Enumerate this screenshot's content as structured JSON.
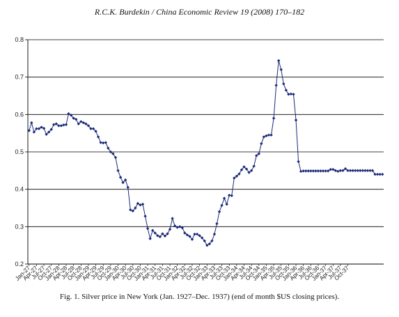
{
  "header": {
    "running_head": "R.C.K. Burdekin / China Economic Review 19 (2008) 170–182"
  },
  "figure": {
    "caption": "Fig. 1. Silver price in New York (Jan. 1927–Dec. 1937) (end of month $US closing prices)."
  },
  "colors": {
    "series": "#1b2a78",
    "grid": "#000000"
  },
  "chart_data": {
    "type": "line",
    "ylim": [
      0.2,
      0.8
    ],
    "yticks": [
      "0.2",
      "0.3",
      "0.4",
      "0.5",
      "0.6",
      "0.7",
      "0.8"
    ],
    "grid": "horizontal",
    "xtick_labels": [
      "Jan-27",
      "Apr-27",
      "Jul-27",
      "Oct-27",
      "Jan-28",
      "Apr-28",
      "Jul-28",
      "Oct-28",
      "Jan-29",
      "Apr-29",
      "Jul-29",
      "Oct-29",
      "Jan-30",
      "Apr-30",
      "Jul-30",
      "Oct-30",
      "Jan-31",
      "Apr-31",
      "Jul-31",
      "Oct-31",
      "Jan-32",
      "Apr-32",
      "Jul-32",
      "Oct-32",
      "Jan-33",
      "Apr-33",
      "Jul-33",
      "Oct-33",
      "Jan-34",
      "Apr-34",
      "Jul-34",
      "Oct-34",
      "Jan-35",
      "Apr-35",
      "Jul-35",
      "Oct-35",
      "Jan-36",
      "Apr-36",
      "Jul-36",
      "Oct-36",
      "Jan-37",
      "Apr-37",
      "Jul-37",
      "Oct-37"
    ],
    "x_start": "Jan-1927",
    "x_end": "Dec-1937",
    "values": [
      0.557,
      0.578,
      0.553,
      0.562,
      0.562,
      0.566,
      0.563,
      0.547,
      0.553,
      0.56,
      0.573,
      0.575,
      0.57,
      0.57,
      0.572,
      0.573,
      0.602,
      0.598,
      0.59,
      0.587,
      0.575,
      0.581,
      0.578,
      0.575,
      0.57,
      0.562,
      0.562,
      0.555,
      0.54,
      0.525,
      0.524,
      0.525,
      0.51,
      0.5,
      0.495,
      0.485,
      0.45,
      0.432,
      0.418,
      0.425,
      0.405,
      0.345,
      0.342,
      0.35,
      0.362,
      0.358,
      0.36,
      0.328,
      0.295,
      0.268,
      0.29,
      0.283,
      0.276,
      0.273,
      0.281,
      0.275,
      0.281,
      0.293,
      0.322,
      0.302,
      0.298,
      0.3,
      0.297,
      0.283,
      0.278,
      0.274,
      0.266,
      0.28,
      0.28,
      0.276,
      0.27,
      0.262,
      0.25,
      0.254,
      0.262,
      0.28,
      0.308,
      0.34,
      0.357,
      0.376,
      0.36,
      0.384,
      0.383,
      0.43,
      0.435,
      0.441,
      0.452,
      0.46,
      0.454,
      0.445,
      0.45,
      0.462,
      0.49,
      0.495,
      0.522,
      0.54,
      0.543,
      0.545,
      0.545,
      0.59,
      0.678,
      0.744,
      0.72,
      0.682,
      0.665,
      0.654,
      0.655,
      0.654,
      0.585,
      0.474,
      0.448,
      0.449,
      0.449,
      0.449,
      0.449,
      0.449,
      0.449,
      0.449,
      0.449,
      0.449,
      0.449,
      0.449,
      0.453,
      0.453,
      0.45,
      0.448,
      0.45,
      0.45,
      0.455,
      0.45,
      0.45,
      0.45,
      0.45,
      0.45,
      0.45,
      0.45,
      0.45,
      0.45,
      0.45,
      0.45,
      0.44,
      0.44,
      0.44,
      0.44
    ]
  }
}
